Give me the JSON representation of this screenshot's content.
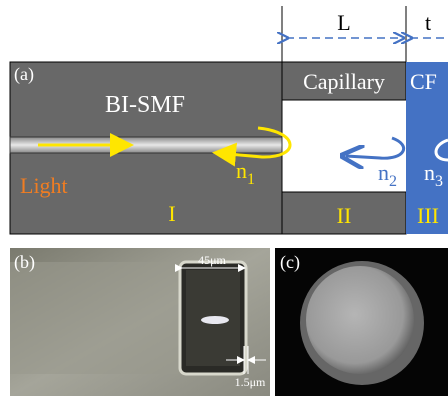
{
  "panel_a": {
    "label": "(a)",
    "length_label": "L",
    "thickness_label": "t",
    "fiber": "BI-SMF",
    "capillary": "Capillary",
    "cf": "CF",
    "light": "Light",
    "regions": [
      "I",
      "II",
      "III"
    ],
    "indices": [
      {
        "symbol": "n",
        "sub": "1"
      },
      {
        "symbol": "n",
        "sub": "2"
      },
      {
        "symbol": "n",
        "sub": "3"
      }
    ]
  },
  "panel_b": {
    "label": "(b)",
    "width_label": "45μm",
    "wall_label": "1.5μm"
  },
  "panel_c": {
    "label": "(c)"
  }
}
